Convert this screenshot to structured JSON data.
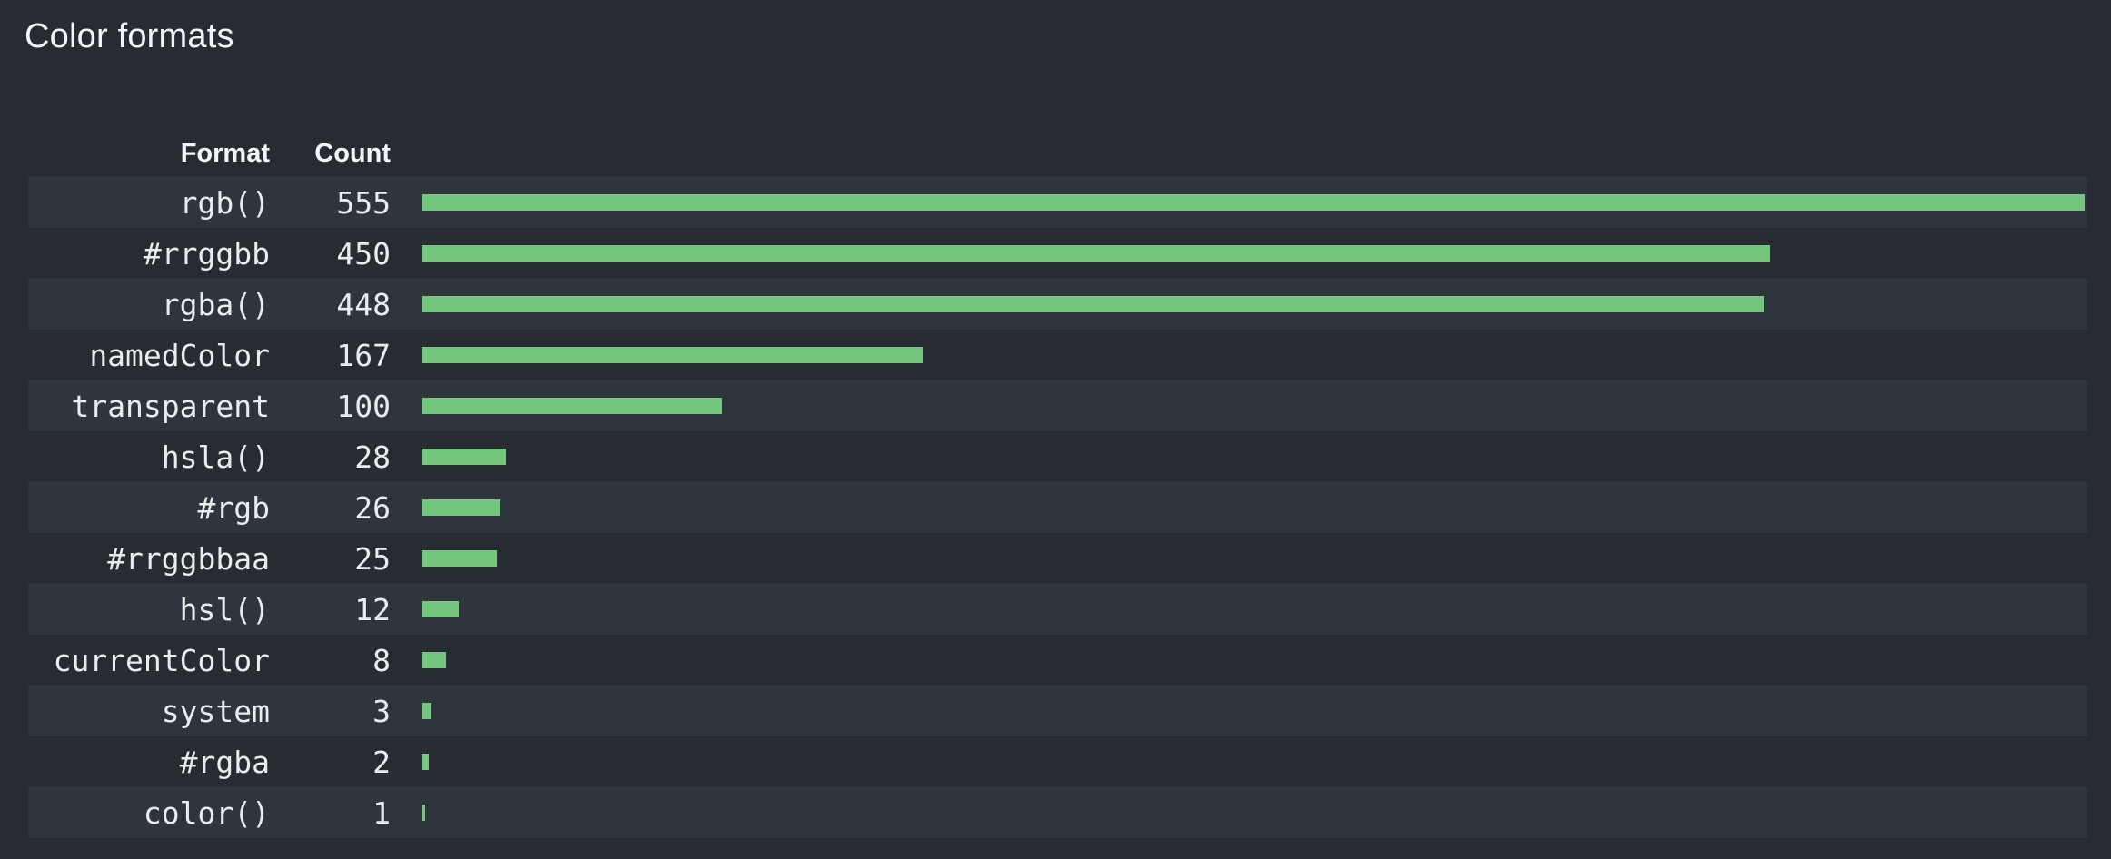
{
  "title": "Color formats",
  "colors": {
    "background": "#272c33",
    "row_stripe": "#2f353d",
    "bar": "#75c77e",
    "text": "#e9eced",
    "heading": "#f3f6f9"
  },
  "table": {
    "format_header": "Format",
    "count_header": "Count"
  },
  "chart_data": {
    "type": "bar",
    "orientation": "horizontal",
    "title": "Color formats",
    "columns": [
      "Format",
      "Count"
    ],
    "categories": [
      "rgb()",
      "#rrggbb",
      "rgba()",
      "namedColor",
      "transparent",
      "hsla()",
      "#rgb",
      "#rrggbbaa",
      "hsl()",
      "currentColor",
      "system",
      "#rgba",
      "color()"
    ],
    "values": [
      555,
      450,
      448,
      167,
      100,
      28,
      26,
      25,
      12,
      8,
      3,
      2,
      1
    ],
    "xlim": [
      0,
      555
    ],
    "grid": false,
    "legend": "none",
    "bar_color": "#75c77e",
    "row_striping": "alternating, first row shaded"
  }
}
